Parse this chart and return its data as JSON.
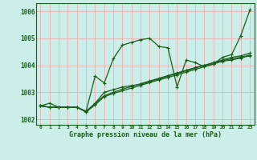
{
  "title": "Graphe pression niveau de la mer (hPa)",
  "bg_color": "#cceee8",
  "grid_color": "#e8b0b0",
  "line_color": "#1a5c1a",
  "xlim": [
    -0.5,
    23.5
  ],
  "ylim": [
    1001.8,
    1006.3
  ],
  "yticks": [
    1002,
    1003,
    1004,
    1005,
    1006
  ],
  "xticks": [
    0,
    1,
    2,
    3,
    4,
    5,
    6,
    7,
    8,
    9,
    10,
    11,
    12,
    13,
    14,
    15,
    16,
    17,
    18,
    19,
    20,
    21,
    22,
    23
  ],
  "series": [
    [
      1002.5,
      1002.6,
      1002.45,
      1002.45,
      1002.45,
      1002.3,
      1003.6,
      1003.35,
      1004.25,
      1004.75,
      1004.85,
      1004.95,
      1005.0,
      1004.7,
      1004.65,
      1003.2,
      1004.2,
      1004.1,
      1003.95,
      1004.05,
      1004.3,
      1004.4,
      1005.1,
      1006.05
    ],
    [
      1002.5,
      1002.45,
      1002.45,
      1002.45,
      1002.45,
      1002.3,
      1002.6,
      1003.0,
      1003.1,
      1003.2,
      1003.25,
      1003.3,
      1003.4,
      1003.5,
      1003.6,
      1003.7,
      1003.8,
      1003.9,
      1004.0,
      1004.1,
      1004.2,
      1004.3,
      1004.35,
      1004.45
    ],
    [
      1002.5,
      1002.45,
      1002.45,
      1002.45,
      1002.45,
      1002.28,
      1002.58,
      1002.88,
      1003.0,
      1003.12,
      1003.22,
      1003.32,
      1003.42,
      1003.52,
      1003.62,
      1003.72,
      1003.82,
      1003.92,
      1004.0,
      1004.1,
      1004.18,
      1004.24,
      1004.3,
      1004.38
    ],
    [
      1002.5,
      1002.45,
      1002.45,
      1002.45,
      1002.45,
      1002.27,
      1002.54,
      1002.84,
      1002.96,
      1003.06,
      1003.16,
      1003.26,
      1003.36,
      1003.46,
      1003.55,
      1003.65,
      1003.75,
      1003.85,
      1003.95,
      1004.05,
      1004.15,
      1004.2,
      1004.27,
      1004.36
    ]
  ]
}
